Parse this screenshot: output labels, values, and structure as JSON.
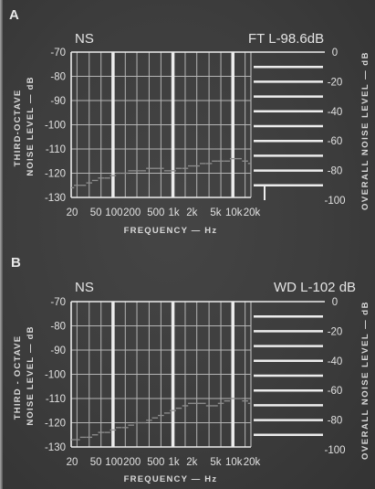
{
  "figure": {
    "line_color": "#ececec",
    "grid_color": "#b4b4b4",
    "trace_color": "#8e8e8e"
  },
  "chart_data": [
    {
      "type": "line",
      "panel_label": "A",
      "annotation_left": "NS",
      "annotation_right": "FT L-98.6dB",
      "ylabel_line1": "THIRD-OCTAVE",
      "ylabel_line2": "NOISE LEVEL — dB",
      "y2label": "OVERALL NOISE LEVEL — dB",
      "xlabel": "FREQUENCY — Hz",
      "x_scale": "log",
      "xlim": [
        20,
        20000
      ],
      "ylim": [
        -130,
        -70
      ],
      "y2lim": [
        -100,
        0
      ],
      "x_ticks": [
        20,
        50,
        100,
        200,
        500,
        1000,
        2000,
        5000,
        10000,
        20000
      ],
      "x_tick_labels": [
        "20",
        "50",
        "100",
        "200",
        "500",
        "1k",
        "2k",
        "5k",
        "10k",
        "20k"
      ],
      "y_ticks": [
        -70,
        -80,
        -90,
        -100,
        -110,
        -120,
        -130
      ],
      "y_tick_labels": [
        "-70",
        "-80",
        "-90",
        "-100",
        "-110",
        "-120",
        "-130"
      ],
      "y2_ticks": [
        0,
        -20,
        -40,
        -60,
        -80,
        -100
      ],
      "y2_tick_labels": [
        "0",
        "-20",
        "-40",
        "-60",
        "-80",
        "-100"
      ],
      "grid": true,
      "x_gridlines": [
        25,
        40,
        63,
        160,
        250,
        400,
        630,
        1600,
        2500,
        4000,
        6300,
        16000
      ],
      "x_major_gridlines": [
        100,
        1000,
        10000
      ],
      "y2_gridlines": [
        -10,
        -20,
        -30,
        -40,
        -50,
        -60,
        -70,
        -80,
        -90
      ],
      "series": [
        {
          "x": [
            20,
            25,
            31.5,
            40,
            50,
            63,
            80,
            100,
            125,
            160,
            200,
            250,
            315,
            400,
            500,
            630,
            800,
            1000,
            1250,
            1600,
            2000,
            2500,
            3150,
            4000,
            5000,
            6300,
            8000,
            10000,
            12500,
            16000,
            20000
          ],
          "values": [
            -126,
            -125,
            -125,
            -124,
            -123,
            -122,
            -122,
            -121,
            -120,
            -120,
            -119,
            -119,
            -119,
            -118,
            -118,
            -118,
            -119,
            -119,
            -118,
            -118,
            -117,
            -117,
            -116,
            -116,
            -115,
            -115,
            -115,
            -114,
            -114,
            -115,
            -116
          ]
        }
      ],
      "overall_level_marker": [
        -100,
        -90
      ]
    },
    {
      "type": "line",
      "panel_label": "B",
      "annotation_left": "NS",
      "annotation_right": "WD L-102 dB",
      "ylabel_line1": "THIRD - OCTAVE",
      "ylabel_line2": "NOISE LEVEL — dB",
      "y2label": "OVERALL NOISE LEVEL — dB",
      "xlabel": "FREQUENCY — Hz",
      "x_scale": "log",
      "xlim": [
        20,
        20000
      ],
      "ylim": [
        -130,
        -70
      ],
      "y2lim": [
        -100,
        0
      ],
      "x_ticks": [
        20,
        50,
        100,
        200,
        500,
        1000,
        2000,
        5000,
        10000,
        20000
      ],
      "x_tick_labels": [
        "20",
        "50",
        "100",
        "200",
        "500",
        "1k",
        "2k",
        "5k",
        "10k",
        "20k"
      ],
      "y_ticks": [
        -70,
        -80,
        -90,
        -100,
        -110,
        -120,
        -130
      ],
      "y_tick_labels": [
        "-70",
        "-80",
        "-90",
        "-100",
        "-110",
        "-120",
        "-130"
      ],
      "y2_ticks": [
        0,
        -20,
        -40,
        -60,
        -80,
        -100
      ],
      "y2_tick_labels": [
        "0",
        "-20",
        "-40",
        "-60",
        "-80",
        "-100"
      ],
      "grid": true,
      "x_gridlines": [
        25,
        40,
        63,
        160,
        250,
        400,
        630,
        1600,
        2500,
        4000,
        6300,
        16000
      ],
      "x_major_gridlines": [
        100,
        1000,
        10000
      ],
      "y2_gridlines": [
        -10,
        -20,
        -30,
        -40,
        -50,
        -60,
        -70,
        -80,
        -90
      ],
      "series": [
        {
          "x": [
            20,
            25,
            31.5,
            40,
            50,
            63,
            80,
            100,
            125,
            160,
            200,
            250,
            315,
            400,
            500,
            630,
            800,
            1000,
            1250,
            1600,
            2000,
            2500,
            3150,
            4000,
            5000,
            6300,
            8000,
            10000,
            12500,
            16000,
            20000
          ],
          "values": [
            -127,
            -127,
            -126,
            -126,
            -125,
            -124,
            -124,
            -123,
            -122,
            -122,
            -121,
            -120,
            -120,
            -119,
            -118,
            -117,
            -116,
            -115,
            -114,
            -113,
            -112,
            -112,
            -112,
            -113,
            -113,
            -112,
            -111,
            -110,
            -110,
            -111,
            -112
          ]
        }
      ]
    }
  ]
}
